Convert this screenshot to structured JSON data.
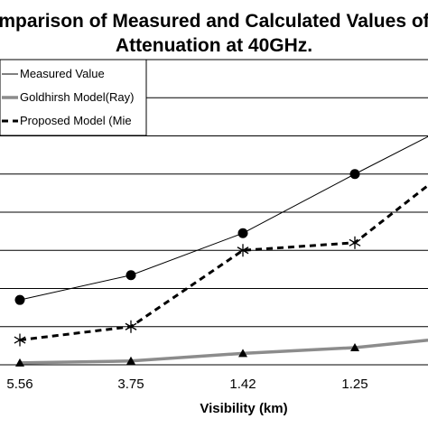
{
  "chart_data": {
    "type": "line",
    "title_line1": "mparison of Measured and Calculated Values of",
    "title_line2": "Attenuation at 40GHz.",
    "xlabel": "Visibility (km)",
    "categories": [
      "5.56",
      "3.75",
      "1.42",
      "1.25",
      ""
    ],
    "ylim": [
      0,
      8
    ],
    "grid": true,
    "legend_position": "top-left",
    "series": [
      {
        "name": "Measured Value",
        "values": [
          1.7,
          2.35,
          3.45,
          5.0,
          6.5
        ],
        "marker": "circle",
        "line": "solid-thin",
        "color": "#000000"
      },
      {
        "name": "Goldhirsh Model(Ray)",
        "values": [
          0.05,
          0.1,
          0.3,
          0.45,
          0.75
        ],
        "marker": "triangle",
        "line": "solid-thick-gray",
        "color": "#8c8c8c"
      },
      {
        "name": "Proposed Model (Mie",
        "values": [
          0.65,
          1.0,
          3.0,
          3.2,
          5.5
        ],
        "marker": "asterisk",
        "line": "dashed",
        "color": "#000000"
      }
    ]
  }
}
